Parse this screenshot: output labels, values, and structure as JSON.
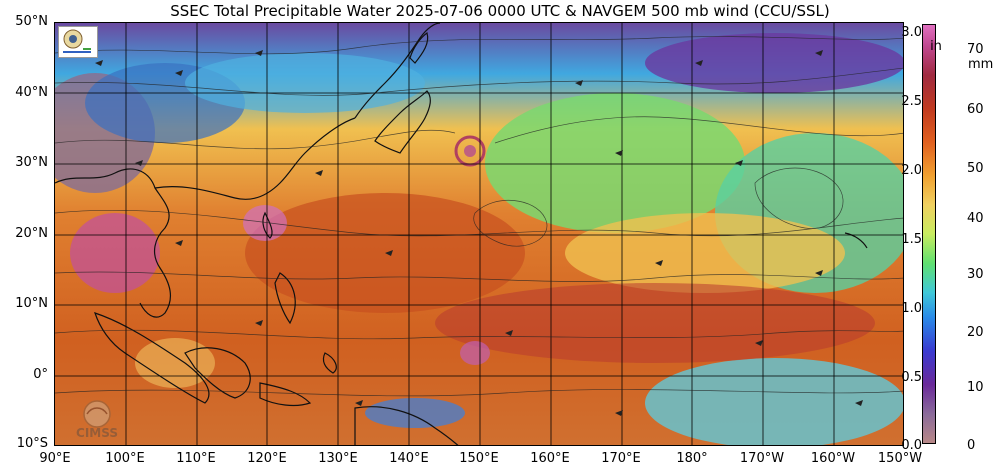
{
  "title": "SSEC Total Precipitable Water  2025-07-06 0000 UTC & NAVGEM 500 mb wind (CCU/SSL)",
  "latitude_labels": [
    "50°N",
    "40°N",
    "30°N",
    "20°N",
    "10°N",
    "0°",
    "10°S"
  ],
  "longitude_labels": [
    "90°E",
    "100°E",
    "110°E",
    "120°E",
    "130°E",
    "140°E",
    "150°E",
    "160°E",
    "170°E",
    "180°",
    "170°W",
    "160°W",
    "150°W"
  ],
  "colorbar": {
    "inch_unit": "in",
    "inch_labels": [
      "3.0",
      "2.5",
      "2.0",
      "1.5",
      "1.0",
      "0.5",
      "0.0"
    ],
    "mm_unit": "mm",
    "mm_labels": [
      "70",
      "60",
      "50",
      "40",
      "30",
      "20",
      "10",
      "0"
    ]
  },
  "logos": {
    "top_left": "ssec-lab-logo",
    "bottom_left": "CIMSS"
  },
  "colors": {
    "dry": "#b88888",
    "moist_low": "#3a3ad0",
    "moist_mid": "#60e070",
    "moist_high": "#e06020",
    "very_moist": "#e070c0"
  }
}
